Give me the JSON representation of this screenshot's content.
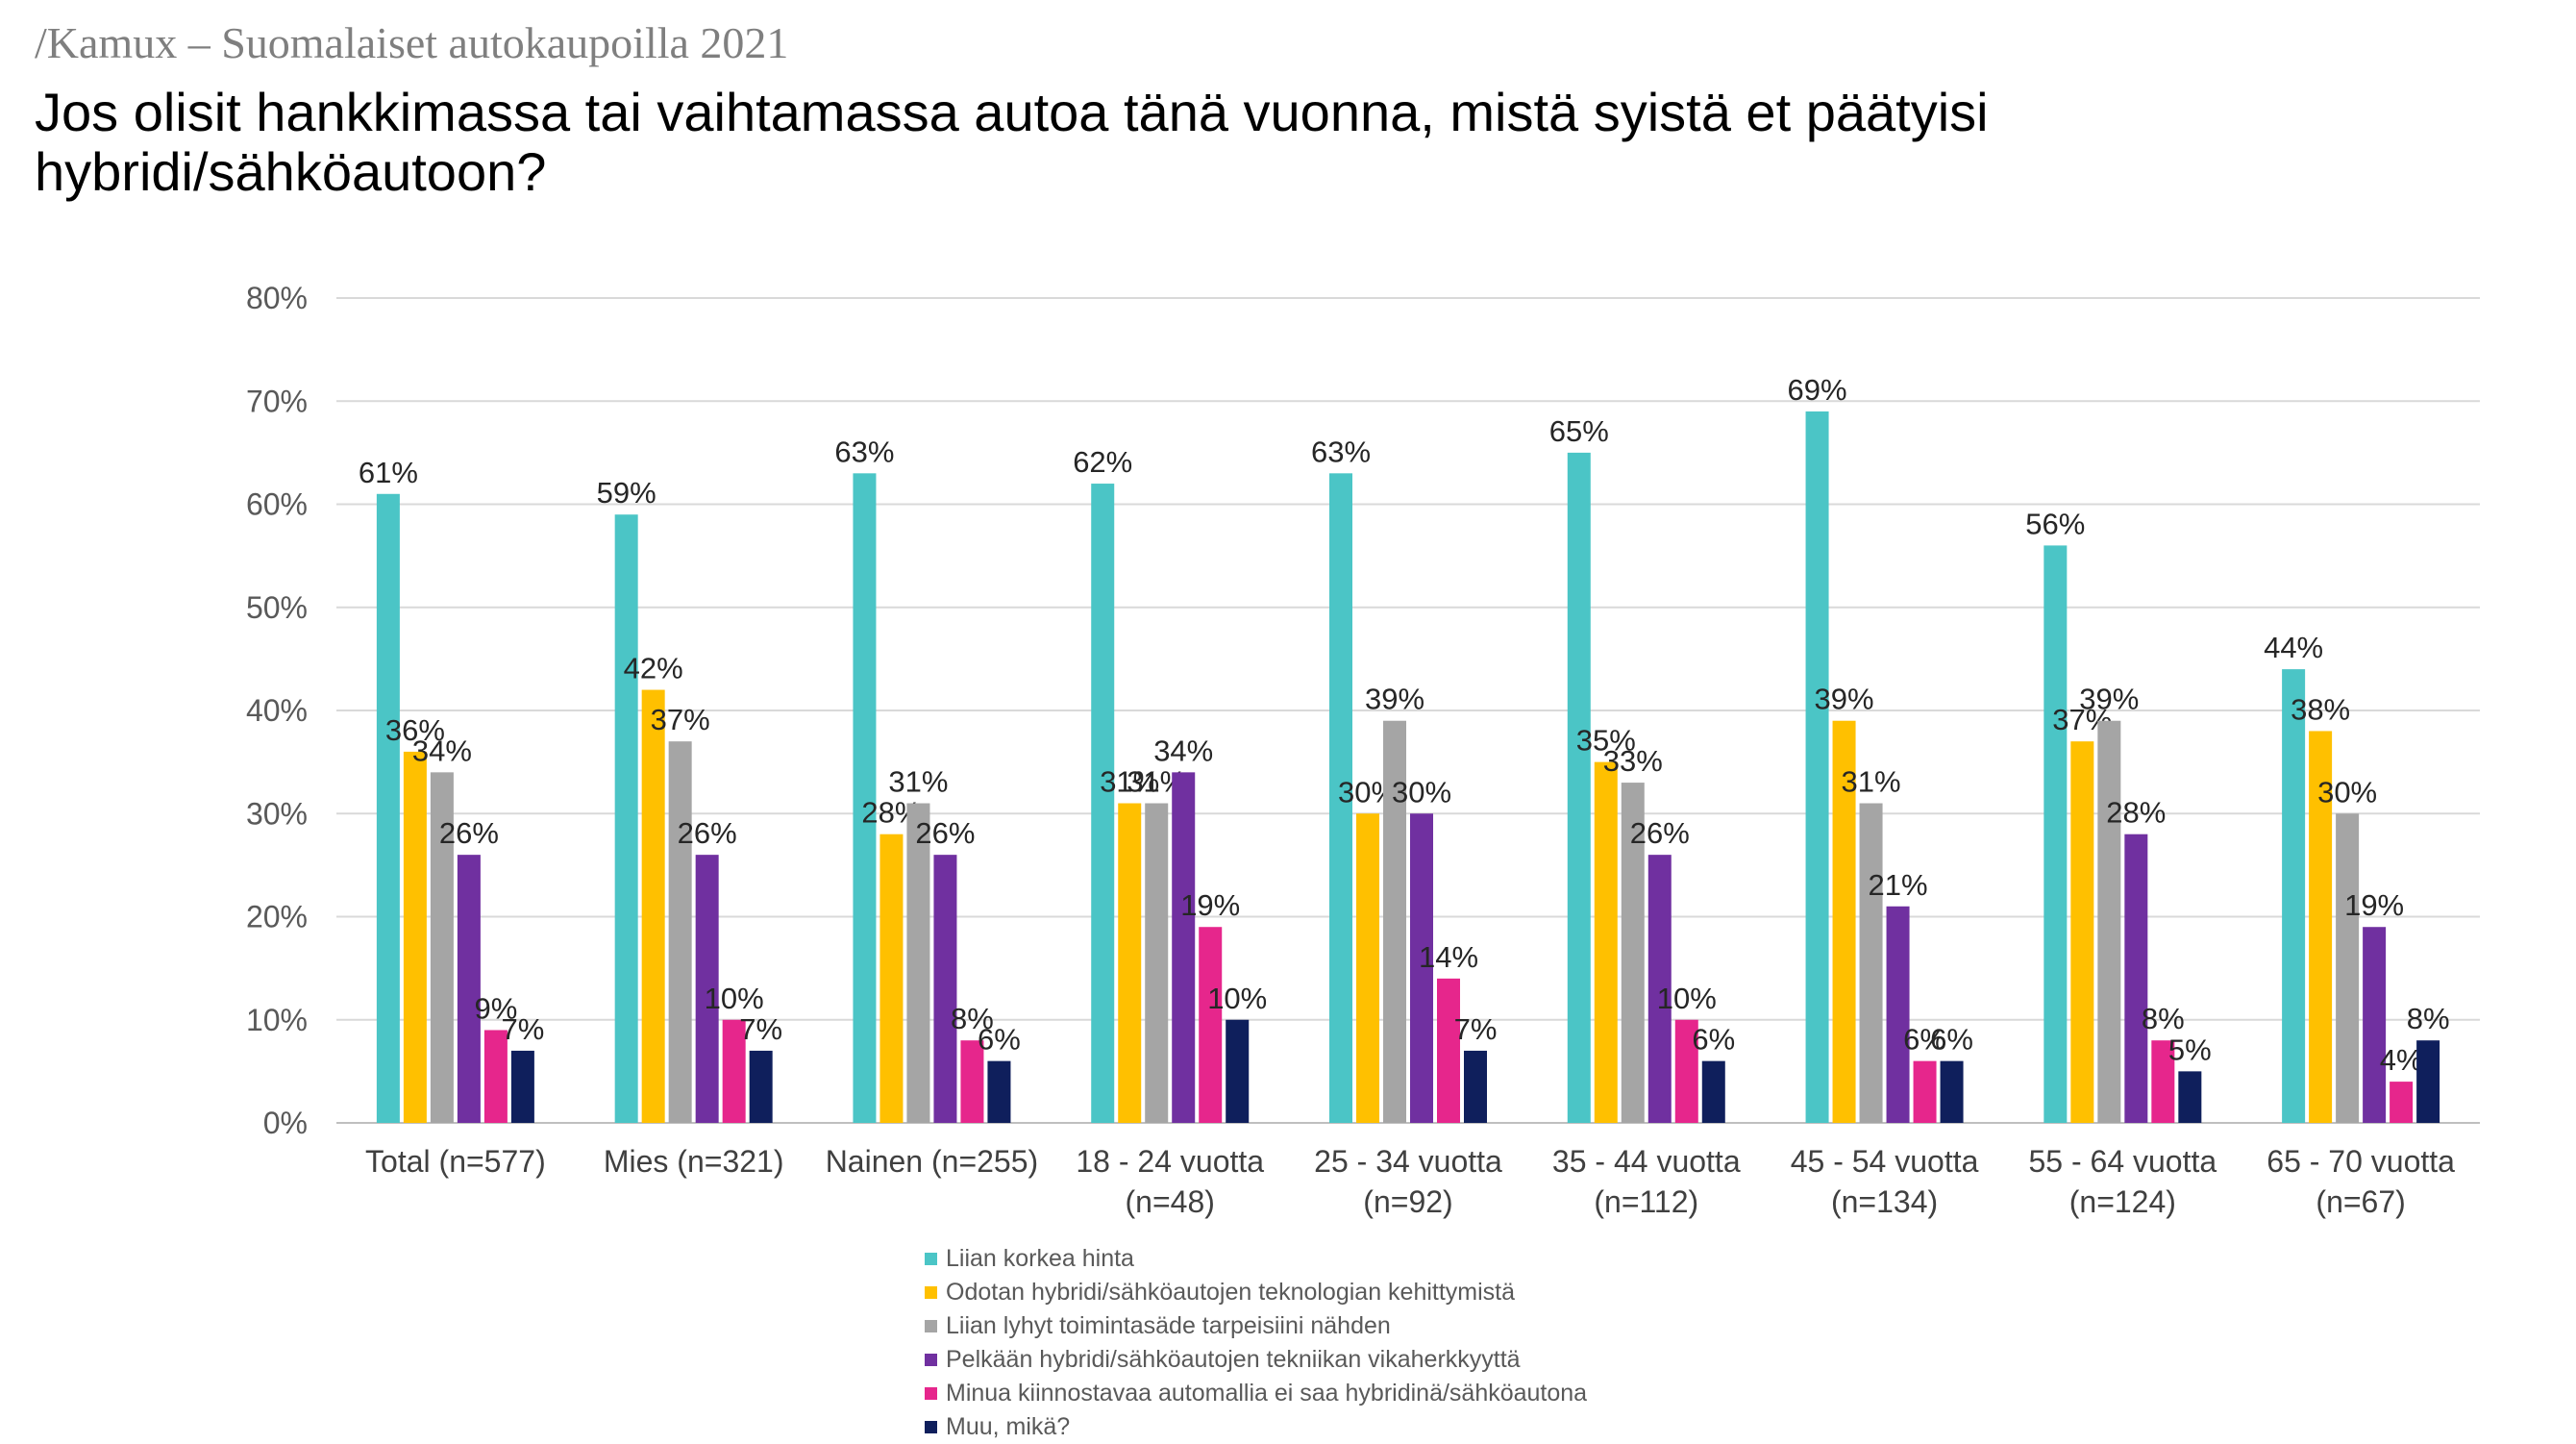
{
  "header": {
    "source": "/Kamux – Suomalaiset autokaupoilla 2021",
    "title": "Jos olisit hankkimassa tai vaihtamassa autoa tänä vuonna, mistä syistä et päätyisi hybridi/sähköautoon?"
  },
  "chart_data": {
    "type": "bar",
    "title": "",
    "xlabel": "",
    "ylabel": "",
    "ylim": [
      0,
      80
    ],
    "yticks": [
      "0%",
      "10%",
      "20%",
      "30%",
      "40%",
      "50%",
      "60%",
      "70%",
      "80%"
    ],
    "grid": true,
    "legend_position": "bottom",
    "categories": [
      [
        "Total (n=577)"
      ],
      [
        "Mies (n=321)"
      ],
      [
        "Nainen (n=255)"
      ],
      [
        "18 - 24 vuotta",
        "(n=48)"
      ],
      [
        "25 - 34 vuotta",
        "(n=92)"
      ],
      [
        "35 - 44 vuotta",
        "(n=112)"
      ],
      [
        "45 - 54 vuotta",
        "(n=134)"
      ],
      [
        "55 - 64 vuotta",
        "(n=124)"
      ],
      [
        "65 - 70 vuotta",
        "(n=67)"
      ]
    ],
    "series": [
      {
        "name": "Liian korkea hinta",
        "color": "#4bc5c6",
        "values": [
          61,
          59,
          63,
          62,
          63,
          65,
          69,
          56,
          44
        ]
      },
      {
        "name": "Odotan hybridi/sähköautojen teknologian kehittymistä",
        "color": "#ffc000",
        "values": [
          36,
          42,
          28,
          31,
          30,
          35,
          39,
          37,
          38
        ]
      },
      {
        "name": "Liian lyhyt toimintasäde tarpeisiini nähden",
        "color": "#a5a5a5",
        "values": [
          34,
          37,
          31,
          31,
          39,
          33,
          31,
          39,
          30
        ]
      },
      {
        "name": "Pelkään hybridi/sähköautojen tekniikan vikaherkkyyttä",
        "color": "#7030a0",
        "values": [
          26,
          26,
          26,
          34,
          30,
          26,
          21,
          28,
          19
        ]
      },
      {
        "name": "Minua kiinnostavaa automallia ei saa hybridinä/sähköautona",
        "color": "#e6268c",
        "values": [
          9,
          10,
          8,
          19,
          14,
          10,
          6,
          8,
          4
        ]
      },
      {
        "name": "Muu, mikä?",
        "color": "#0f1f5c",
        "values": [
          7,
          7,
          6,
          10,
          7,
          6,
          6,
          5,
          8
        ]
      }
    ]
  }
}
